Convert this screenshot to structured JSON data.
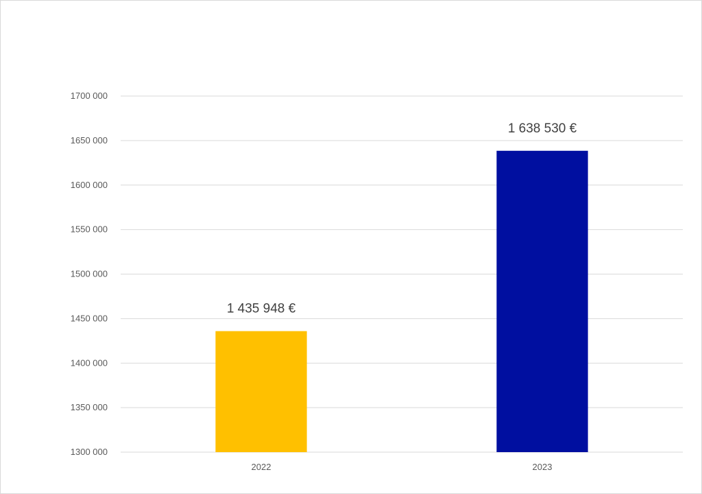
{
  "chart_data": {
    "type": "bar",
    "categories": [
      "2022",
      "2023"
    ],
    "values": [
      1435948,
      1638530
    ],
    "data_labels": [
      "1 435 948 €",
      "1 638 530 €"
    ],
    "colors": [
      "#FFC000",
      "#000FA0"
    ],
    "title": "",
    "xlabel": "",
    "ylabel": "",
    "ylim": [
      1300000,
      1700000
    ],
    "yticks": [
      1300000,
      1350000,
      1400000,
      1450000,
      1500000,
      1550000,
      1600000,
      1650000,
      1700000
    ],
    "ytick_labels": [
      "1300 000",
      "1350 000",
      "1400 000",
      "1450 000",
      "1500 000",
      "1550 000",
      "1600 000",
      "1650 000",
      "1700 000"
    ],
    "grid": true,
    "gridline_color": "#d9d9d9",
    "legend": "none"
  }
}
